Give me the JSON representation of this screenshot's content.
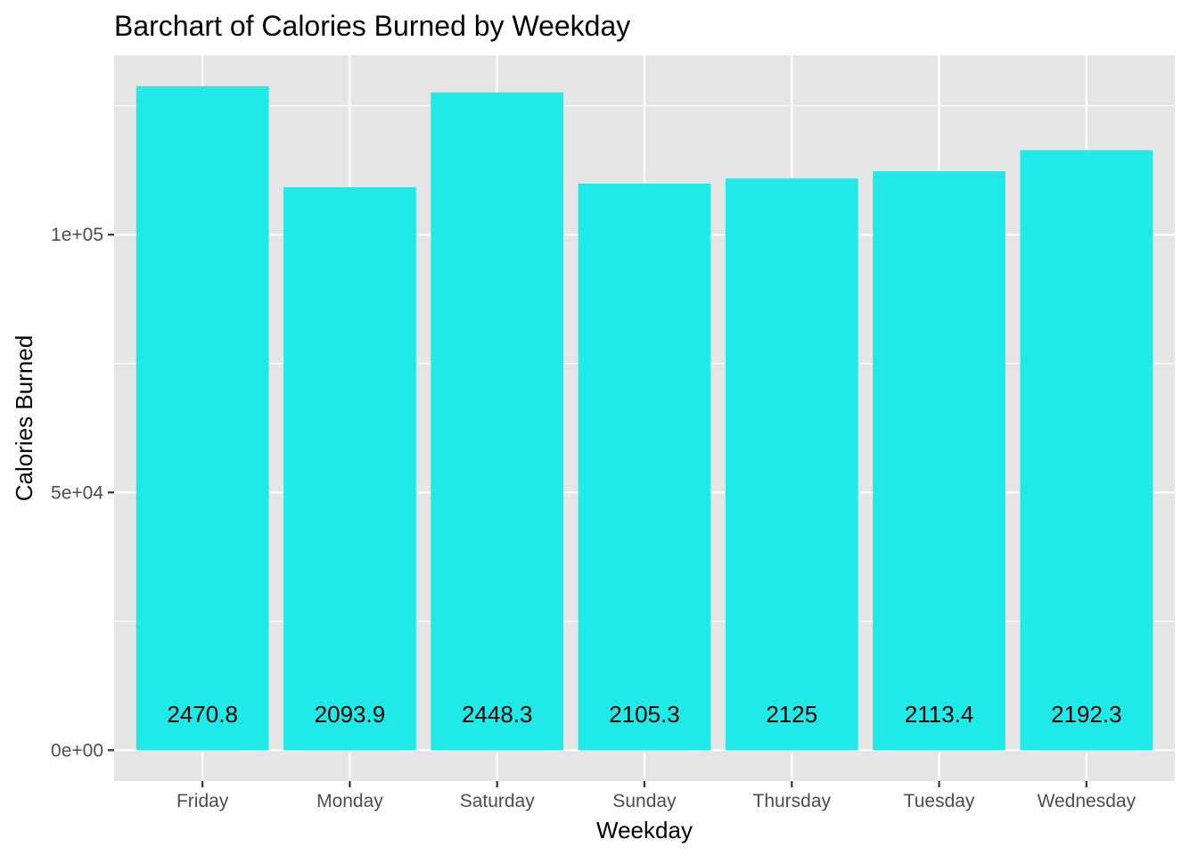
{
  "chart_data": {
    "type": "bar",
    "title": "Barchart of Calories Burned by Weekday",
    "xlabel": "Weekday",
    "ylabel": "Calories Burned",
    "categories": [
      "Friday",
      "Monday",
      "Saturday",
      "Sunday",
      "Thursday",
      "Tuesday",
      "Wednesday"
    ],
    "values": [
      128800,
      109200,
      127600,
      109900,
      110900,
      112300,
      116400
    ],
    "data_labels": [
      "2470.8",
      "2093.9",
      "2448.3",
      "2105.3",
      "2125",
      "2113.4",
      "2192.3"
    ],
    "ylim": [
      -6000,
      134800
    ],
    "yticks": [
      0,
      50000,
      100000
    ],
    "ytick_labels": [
      "0e+00",
      "5e+04",
      "1e+05"
    ],
    "grid": true,
    "legend": "none",
    "colors": {
      "bar": "#20EAE8",
      "panel": "#E5E5E5",
      "grid": "#FFFFFF",
      "text": "#000000",
      "tick_text": "#4D4D4D"
    }
  }
}
